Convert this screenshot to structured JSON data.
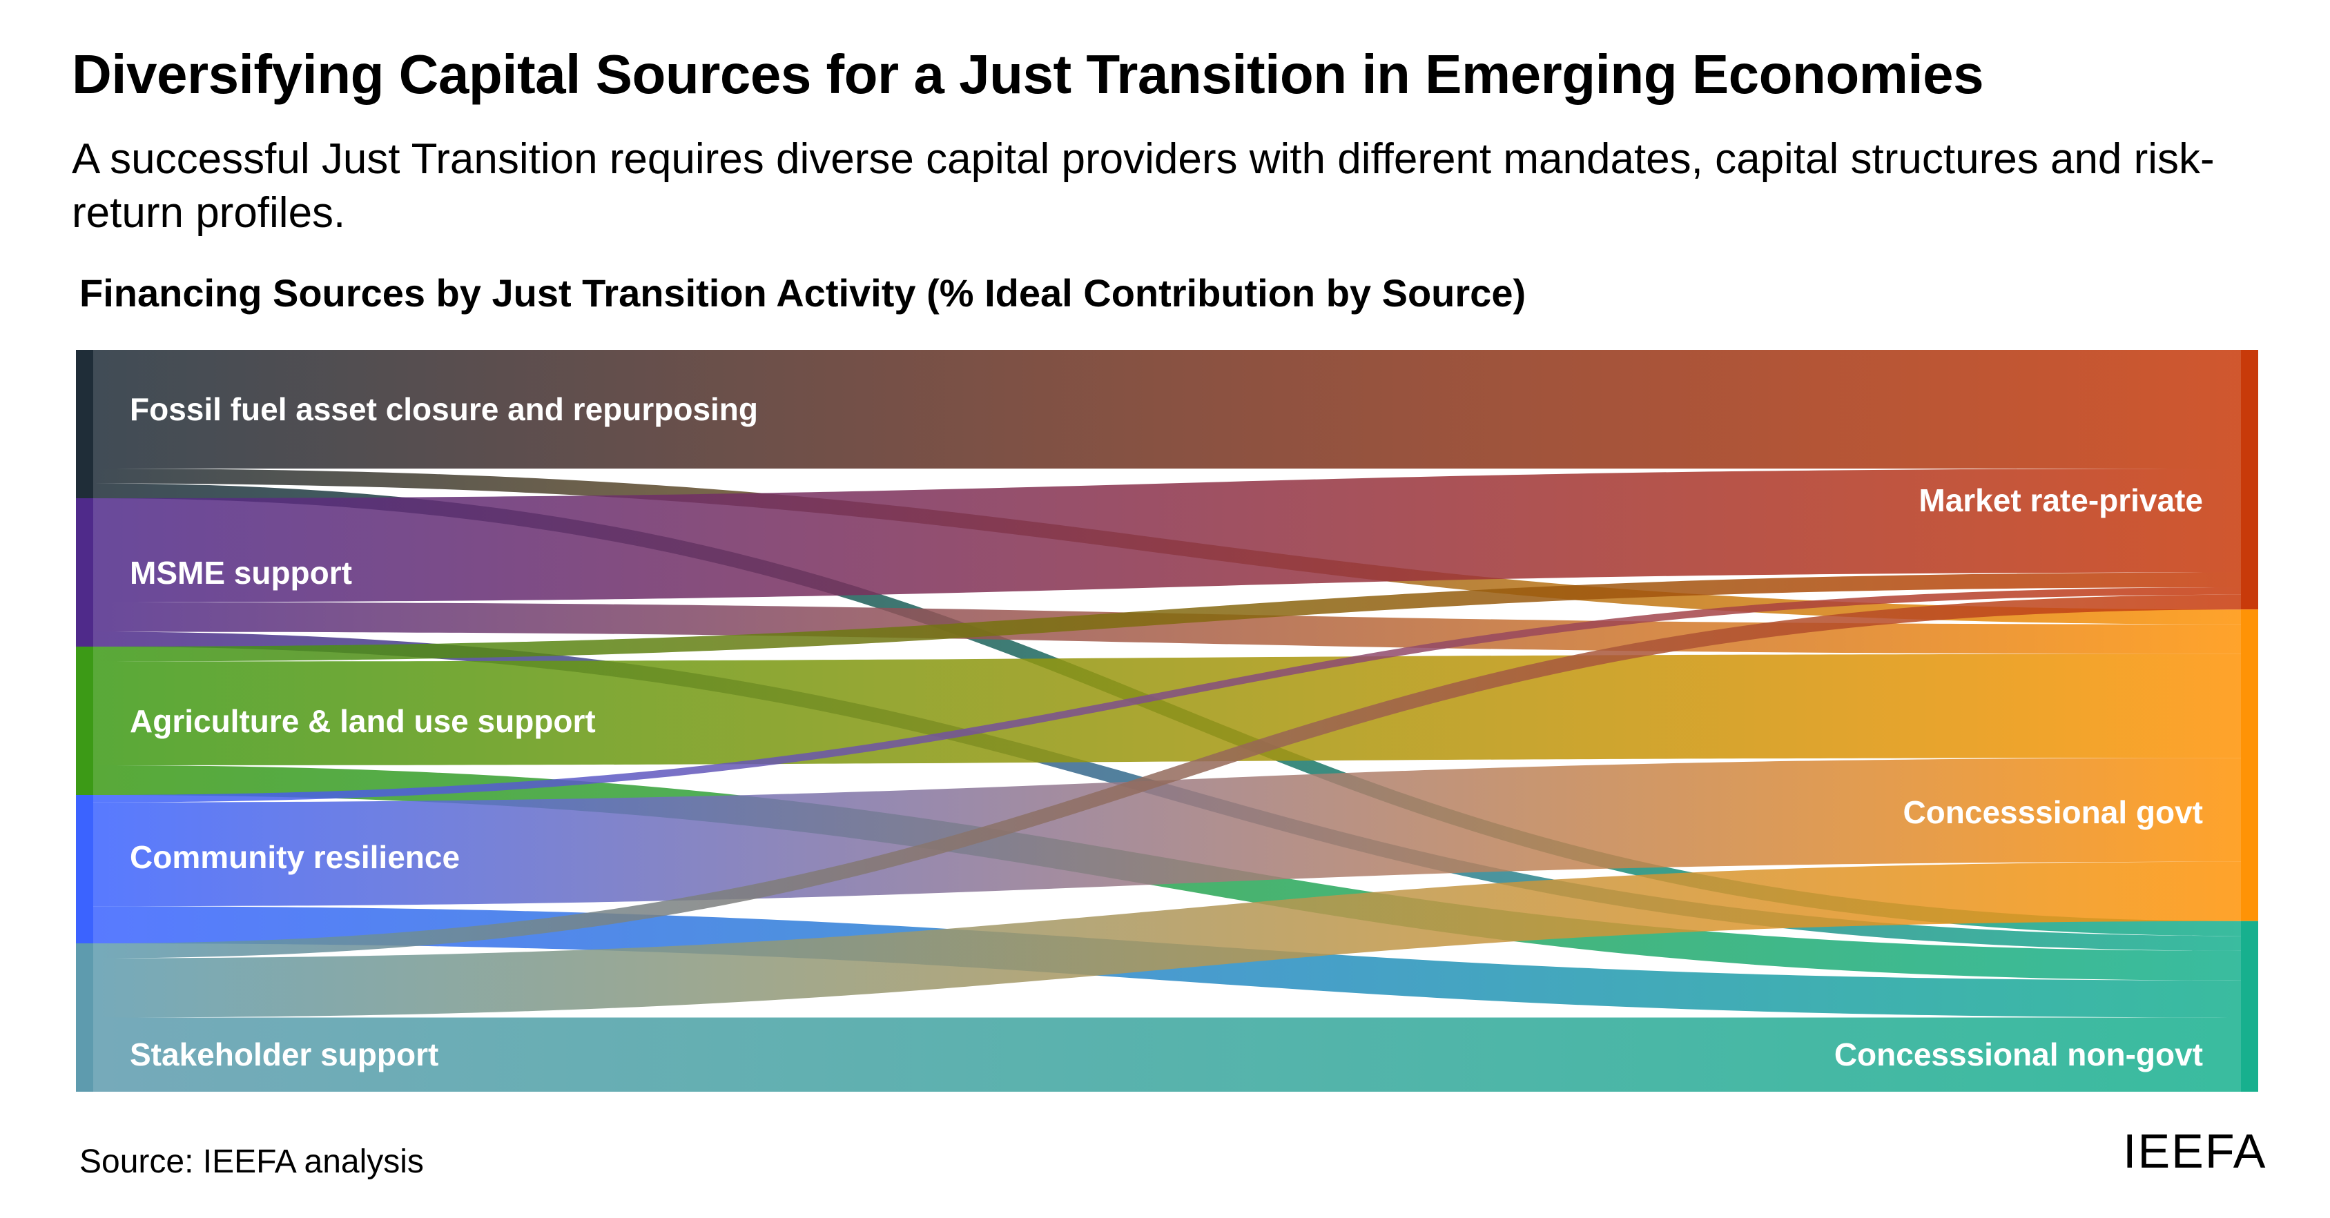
{
  "header": {
    "title": "Diversifying Capital Sources for a Just Transition in Emerging Economies",
    "subtitle": "A successful Just Transition requires diverse capital providers with different mandates, capital structures and risk-return profiles."
  },
  "chart_data": {
    "type": "sankey",
    "title": "Financing Sources by Just Transition Activity (% Ideal Contribution by Source)",
    "unit": "%",
    "sources": [
      {
        "name": "Fossil fuel asset closure and repurposing",
        "color": "#1f2d38"
      },
      {
        "name": "MSME support",
        "color": "#4f2a8a"
      },
      {
        "name": "Agriculture & land use support",
        "color": "#3c9a16"
      },
      {
        "name": "Community resilience",
        "color": "#3b63ff"
      },
      {
        "name": "Stakeholder support",
        "color": "#5e9bae"
      }
    ],
    "targets": [
      {
        "name": "Market rate-private",
        "color": "#c83a0a"
      },
      {
        "name": "Concesssional govt",
        "color": "#ff9306"
      },
      {
        "name": "Concesssional non-govt",
        "color": "#17b08e"
      }
    ],
    "links": [
      {
        "source": "Fossil fuel asset closure and repurposing",
        "target": "Market rate-private",
        "value": 80
      },
      {
        "source": "Fossil fuel asset closure and repurposing",
        "target": "Concesssional govt",
        "value": 10
      },
      {
        "source": "Fossil fuel asset closure and repurposing",
        "target": "Concesssional non-govt",
        "value": 10
      },
      {
        "source": "MSME support",
        "target": "Market rate-private",
        "value": 70
      },
      {
        "source": "MSME support",
        "target": "Concesssional govt",
        "value": 20
      },
      {
        "source": "MSME support",
        "target": "Concesssional non-govt",
        "value": 10
      },
      {
        "source": "Agriculture & land use support",
        "target": "Market rate-private",
        "value": 10
      },
      {
        "source": "Agriculture & land use support",
        "target": "Concesssional govt",
        "value": 70
      },
      {
        "source": "Agriculture & land use support",
        "target": "Concesssional non-govt",
        "value": 20
      },
      {
        "source": "Community resilience",
        "target": "Market rate-private",
        "value": 5
      },
      {
        "source": "Community resilience",
        "target": "Concesssional govt",
        "value": 70
      },
      {
        "source": "Community resilience",
        "target": "Concesssional non-govt",
        "value": 25
      },
      {
        "source": "Stakeholder support",
        "target": "Market rate-private",
        "value": 10
      },
      {
        "source": "Stakeholder support",
        "target": "Concesssional govt",
        "value": 40
      },
      {
        "source": "Stakeholder support",
        "target": "Concesssional non-govt",
        "value": 50
      }
    ]
  },
  "footer": {
    "source": "Source: IEEFA analysis",
    "logo": "IEEFA"
  }
}
